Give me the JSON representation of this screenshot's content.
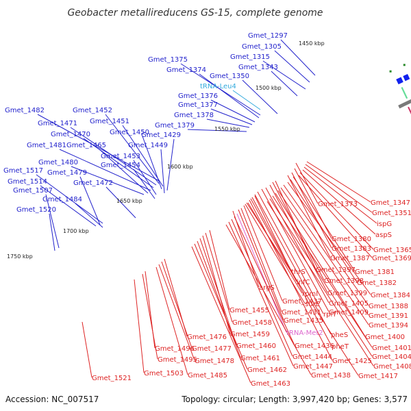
{
  "title": "Geobacter metallireducens GS-15, complete genome",
  "accession": "Accession: NC_007517",
  "summary": "Topology: circular; Length: 3,997,420 bp; Genes: 3,577",
  "colors": {
    "forward_labels": "#2222cc",
    "reverse_labels": "#dd2222",
    "rna_forward": "#33aadd",
    "rna_reverse": "#dd66cc",
    "backbone": "#7a7a7a",
    "tick": "#2a8a2a"
  },
  "kbp_ticks": [
    {
      "label": "1450 kbp"
    },
    {
      "label": "1500 kbp"
    },
    {
      "label": "1550 kbp"
    },
    {
      "label": "1600 kbp"
    },
    {
      "label": "1650 kbp"
    },
    {
      "label": "1700 kbp"
    },
    {
      "label": "1750 kbp"
    }
  ],
  "forward_labels": [
    {
      "text": "Gmet_1297"
    },
    {
      "text": "Gmet_1305"
    },
    {
      "text": "Gmet_1315"
    },
    {
      "text": "Gmet_1343"
    },
    {
      "text": "Gmet_1375"
    },
    {
      "text": "Gmet_1374"
    },
    {
      "text": "Gmet_1350"
    },
    {
      "text": "tRNA-Leu4",
      "kind": "rna"
    },
    {
      "text": "Gmet_1376"
    },
    {
      "text": "Gmet_1377"
    },
    {
      "text": "Gmet_1378"
    },
    {
      "text": "Gmet_1379"
    },
    {
      "text": "Gmet_1482"
    },
    {
      "text": "Gmet_1452"
    },
    {
      "text": "Gmet_1471"
    },
    {
      "text": "Gmet_1451"
    },
    {
      "text": "Gmet_1470"
    },
    {
      "text": "Gmet_1450"
    },
    {
      "text": "Gmet_1429"
    },
    {
      "text": "Gmet_1481"
    },
    {
      "text": "Gmet_1465"
    },
    {
      "text": "Gmet_1449"
    },
    {
      "text": "Gmet_1453"
    },
    {
      "text": "Gmet_1480"
    },
    {
      "text": "Gmet_1454"
    },
    {
      "text": "Gmet_1517"
    },
    {
      "text": "Gmet_1479"
    },
    {
      "text": "Gmet_1514"
    },
    {
      "text": "Gmet_1472"
    },
    {
      "text": "Gmet_1507"
    },
    {
      "text": "Gmet_1484"
    },
    {
      "text": "Gmet_1520"
    }
  ],
  "reverse_labels": [
    {
      "text": "Gmet_1347"
    },
    {
      "text": "Gmet_1373"
    },
    {
      "text": "Gmet_1351"
    },
    {
      "text": "ispG"
    },
    {
      "text": "aspS"
    },
    {
      "text": "Gmet_1380"
    },
    {
      "text": "Gmet_1365"
    },
    {
      "text": "Gmet_1383"
    },
    {
      "text": "Gmet_1387"
    },
    {
      "text": "Gmet_1369"
    },
    {
      "text": "Gmet_1397"
    },
    {
      "text": "Gmet_1381"
    },
    {
      "text": "thrS"
    },
    {
      "text": "Gmet_1398"
    },
    {
      "text": "infC"
    },
    {
      "text": "Gmet_1382"
    },
    {
      "text": "rpmI"
    },
    {
      "text": "Gmet_1399"
    },
    {
      "text": "Gmet_1384"
    },
    {
      "text": "argS"
    },
    {
      "text": "Gmet_1437"
    },
    {
      "text": "surE"
    },
    {
      "text": "Gmet_1405"
    },
    {
      "text": "Gmet_1388"
    },
    {
      "text": "Gmet_1455"
    },
    {
      "text": "Gmet_1431"
    },
    {
      "text": "rplT"
    },
    {
      "text": "Gmet_1409"
    },
    {
      "text": "Gmet_1391"
    },
    {
      "text": "Gmet_1435"
    },
    {
      "text": "Gmet_1458"
    },
    {
      "text": "Gmet_1394"
    },
    {
      "text": "tRNA-Met2",
      "kind": "rna"
    },
    {
      "text": "pheS"
    },
    {
      "text": "Gmet_1459"
    },
    {
      "text": "Gmet_1400"
    },
    {
      "text": "Gmet_1476"
    },
    {
      "text": "Gmet_1436"
    },
    {
      "text": "Gmet_1460"
    },
    {
      "text": "pheT"
    },
    {
      "text": "Gmet_1401"
    },
    {
      "text": "Gmet_1496"
    },
    {
      "text": "Gmet_1477"
    },
    {
      "text": "Gmet_1444"
    },
    {
      "text": "Gmet_1404"
    },
    {
      "text": "Gmet_1461"
    },
    {
      "text": "Gmet_1425"
    },
    {
      "text": "Gmet_1495"
    },
    {
      "text": "Gmet_1478"
    },
    {
      "text": "Gmet_1447"
    },
    {
      "text": "Gmet_1408"
    },
    {
      "text": "Gmet_1462"
    },
    {
      "text": "Gmet_1503"
    },
    {
      "text": "Gmet_1485"
    },
    {
      "text": "Gmet_1438"
    },
    {
      "text": "Gmet_1417"
    },
    {
      "text": "Gmet_1521"
    },
    {
      "text": "Gmet_1463"
    }
  ]
}
